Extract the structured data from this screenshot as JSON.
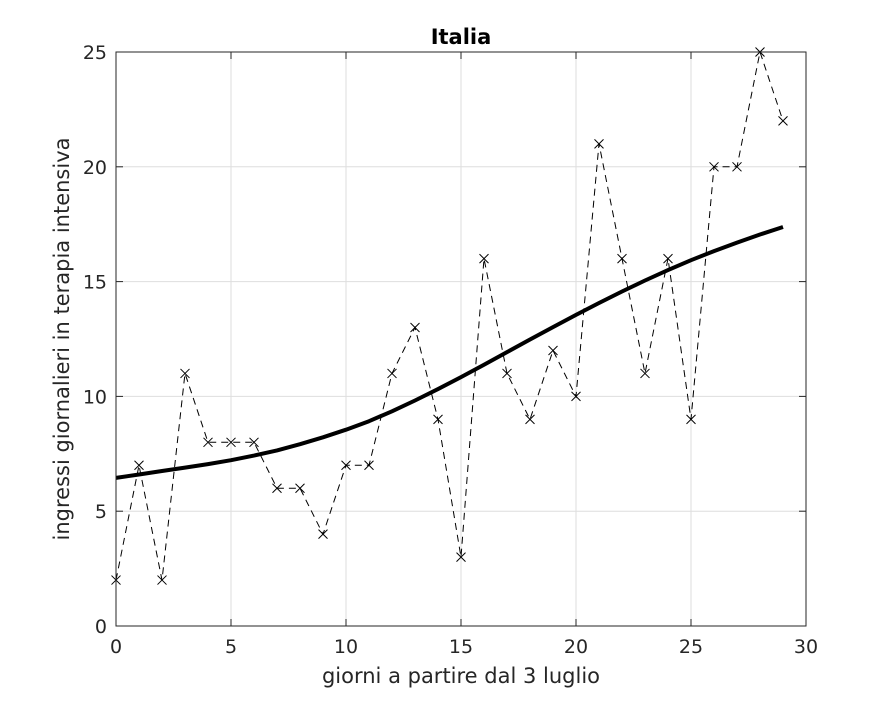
{
  "chart_data": {
    "type": "line",
    "title": "Italia",
    "xlabel": "giorni a partire dal 3 luglio",
    "ylabel": "ingressi giornalieri in terapia intensiva",
    "xlim": [
      0,
      30
    ],
    "ylim": [
      0,
      25
    ],
    "xticks": [
      0,
      5,
      10,
      15,
      20,
      25,
      30
    ],
    "yticks": [
      0,
      5,
      10,
      15,
      20,
      25
    ],
    "grid": true,
    "legend": "none",
    "series": [
      {
        "style": "dashed-x-markers",
        "color": "#000000",
        "x": [
          0,
          1,
          2,
          3,
          4,
          5,
          6,
          7,
          8,
          9,
          10,
          11,
          12,
          13,
          14,
          15,
          16,
          17,
          18,
          19,
          20,
          21,
          22,
          23,
          24,
          25,
          26,
          27,
          28,
          29
        ],
        "y": [
          2,
          7,
          2,
          11,
          8,
          8,
          8,
          6,
          6,
          4,
          7,
          7,
          11,
          13,
          9,
          3,
          16,
          11,
          9,
          12,
          10,
          21,
          16,
          11,
          16,
          9,
          20,
          20,
          25,
          22
        ]
      },
      {
        "style": "thick-solid",
        "color": "#000000",
        "x": [
          0,
          1,
          2,
          3,
          4,
          5,
          6,
          7,
          8,
          9,
          10,
          11,
          12,
          13,
          14,
          15,
          16,
          17,
          18,
          19,
          20,
          21,
          22,
          23,
          24,
          25,
          26,
          27,
          28,
          29
        ],
        "y": [
          6.45,
          6.6,
          6.75,
          6.9,
          7.05,
          7.22,
          7.42,
          7.65,
          7.92,
          8.22,
          8.55,
          8.92,
          9.35,
          9.82,
          10.32,
          10.84,
          11.38,
          11.93,
          12.48,
          13.02,
          13.55,
          14.07,
          14.57,
          15.05,
          15.5,
          15.93,
          16.33,
          16.7,
          17.05,
          17.38
        ]
      }
    ]
  }
}
